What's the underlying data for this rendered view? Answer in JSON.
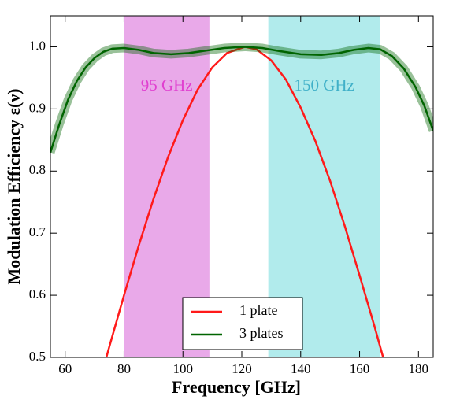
{
  "chart_data": {
    "type": "line",
    "xlabel": "Frequency [GHz]",
    "ylabel": "Modulation Efficiency ε(ν)",
    "xlim": [
      55,
      185
    ],
    "ylim": [
      0.5,
      1.05
    ],
    "xticks": [
      60,
      80,
      100,
      120,
      140,
      160,
      180
    ],
    "yticks": [
      0.5,
      0.6,
      0.7,
      0.8,
      0.9,
      {
        "value": 1,
        "label": "1.0"
      }
    ],
    "shaded_regions": [
      {
        "label": "95 GHz",
        "xrange": [
          80,
          109
        ],
        "color": "#e9a9e9",
        "text_color": "#e040d0"
      },
      {
        "label": "150 GHz",
        "xrange": [
          129,
          167
        ],
        "color": "#b1ebec",
        "text_color": "#40b0c8"
      }
    ],
    "series": [
      {
        "name": "1 plate",
        "color": "#ff1a1a",
        "x": [
          74,
          75,
          80,
          85,
          90,
          95,
          100,
          105,
          110,
          115,
          121,
          125,
          130,
          135,
          140,
          145,
          150,
          155,
          160,
          165,
          168
        ],
        "values": [
          0.5,
          0.517,
          0.6,
          0.68,
          0.755,
          0.823,
          0.882,
          0.931,
          0.967,
          0.99,
          1.0,
          0.996,
          0.978,
          0.947,
          0.902,
          0.848,
          0.784,
          0.711,
          0.632,
          0.551,
          0.5
        ]
      },
      {
        "name": "3 plates",
        "color": "#006400",
        "x": [
          55,
          58,
          61,
          64,
          67,
          70,
          73,
          76,
          80,
          85,
          90,
          96,
          102,
          108,
          114,
          121,
          127,
          133,
          140,
          147,
          153,
          158,
          163,
          167,
          171,
          175,
          179,
          182,
          185
        ],
        "values": [
          0.83,
          0.875,
          0.915,
          0.945,
          0.967,
          0.982,
          0.992,
          0.997,
          0.998,
          0.995,
          0.99,
          0.988,
          0.99,
          0.994,
          0.998,
          1.0,
          0.998,
          0.993,
          0.988,
          0.987,
          0.99,
          0.995,
          0.998,
          0.996,
          0.985,
          0.965,
          0.935,
          0.905,
          0.865
        ]
      }
    ],
    "legend": "lower center"
  }
}
